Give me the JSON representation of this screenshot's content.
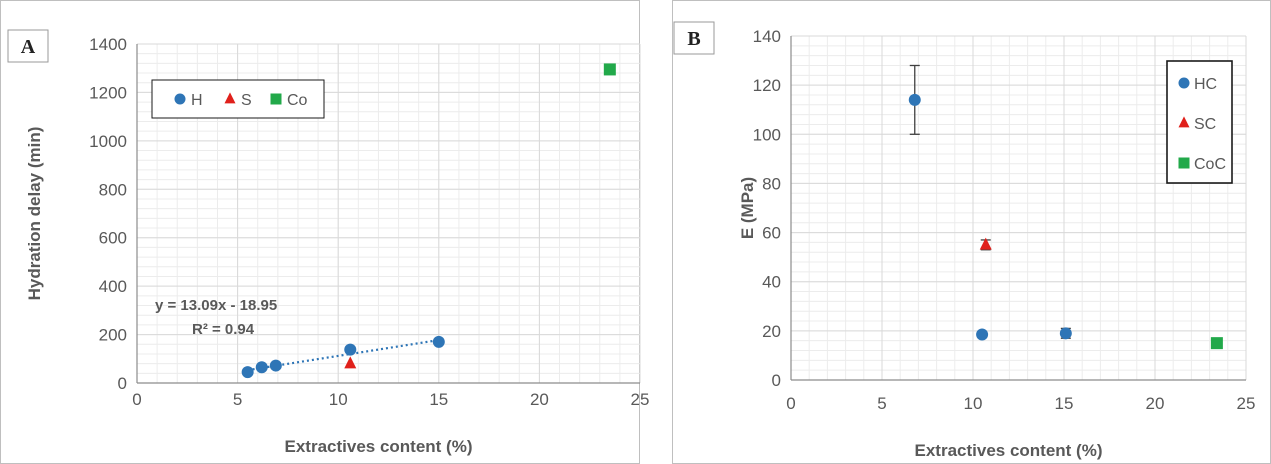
{
  "chart_data": [
    {
      "type": "scatter",
      "panel_label": "A",
      "xlabel": "Extractives content (%)",
      "ylabel": "Hydration delay (min)",
      "xlim": [
        0,
        25
      ],
      "ylim": [
        0,
        1400
      ],
      "xticks": [
        0,
        5,
        10,
        15,
        20,
        25
      ],
      "yticks": [
        0,
        200,
        400,
        600,
        800,
        1000,
        1200,
        1400
      ],
      "grid": true,
      "legend": {
        "placement": "top-left",
        "entries": [
          "H",
          "S",
          "Co"
        ]
      },
      "series": [
        {
          "name": "H",
          "marker": "circle",
          "color": "#2e75b6",
          "points": [
            {
              "x": 5.5,
              "y": 45
            },
            {
              "x": 6.2,
              "y": 65
            },
            {
              "x": 6.9,
              "y": 72
            },
            {
              "x": 10.6,
              "y": 138
            },
            {
              "x": 15.0,
              "y": 170
            }
          ]
        },
        {
          "name": "S",
          "marker": "triangle",
          "color": "#e0201b",
          "points": [
            {
              "x": 10.6,
              "y": 80
            }
          ]
        },
        {
          "name": "Co",
          "marker": "square",
          "color": "#22a94a",
          "points": [
            {
              "x": 23.5,
              "y": 1295
            }
          ]
        }
      ],
      "trendline": {
        "slope": 13.09,
        "intercept": -18.95,
        "x_range": [
          5.5,
          15.0
        ],
        "color": "#2e75b6"
      },
      "annotations": [
        "y = 13.09x - 18.95",
        "R² = 0.94"
      ]
    },
    {
      "type": "scatter",
      "panel_label": "B",
      "xlabel": "Extractives content (%)",
      "ylabel": "E (MPa)",
      "xlim": [
        0,
        25
      ],
      "ylim": [
        0,
        140
      ],
      "xticks": [
        0,
        5,
        10,
        15,
        20,
        25
      ],
      "yticks": [
        0,
        20,
        40,
        60,
        80,
        100,
        120,
        140
      ],
      "grid": true,
      "legend": {
        "placement": "top-right",
        "entries": [
          "HC",
          "SC",
          "CoC"
        ]
      },
      "series": [
        {
          "name": "HC",
          "marker": "circle",
          "color": "#2e75b6",
          "points": [
            {
              "x": 6.8,
              "y": 114,
              "err": 14
            },
            {
              "x": 10.5,
              "y": 18.5,
              "err": 1
            },
            {
              "x": 15.1,
              "y": 19,
              "err": 2
            }
          ]
        },
        {
          "name": "SC",
          "marker": "triangle",
          "color": "#e0201b",
          "points": [
            {
              "x": 10.7,
              "y": 55,
              "err": 2
            }
          ]
        },
        {
          "name": "CoC",
          "marker": "square",
          "color": "#22a94a",
          "points": [
            {
              "x": 23.4,
              "y": 15,
              "err": 2
            }
          ]
        }
      ]
    }
  ]
}
